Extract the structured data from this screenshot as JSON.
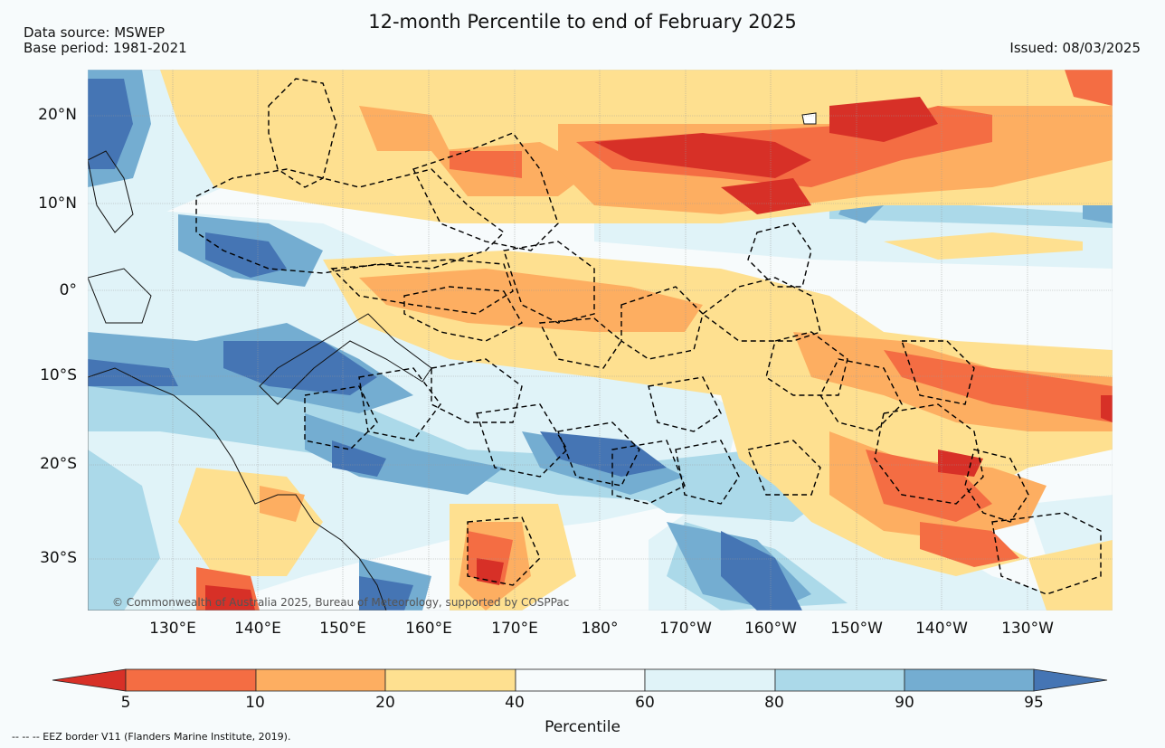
{
  "title": "12-month Percentile to end of February 2025",
  "source_line": "Data source: MSWEP",
  "base_period": "Base period: 1981-2021",
  "issued": "Issued: 08/03/2025",
  "copyright": "© Commonwealth of Australia 2025, Bureau of Meteorology, supported by COSPPac",
  "eez_note": "--  --  -- EEZ border V11 (Flanders Marine Institute, 2019).",
  "map": {
    "lon_min": 120,
    "lon_max": 240,
    "lat_min": -35,
    "lat_max": 25,
    "lat_labels": [
      "20°N",
      "10°N",
      "0°",
      "10°S",
      "20°S",
      "30°S"
    ],
    "lon_labels": [
      "130°E",
      "140°E",
      "150°E",
      "160°E",
      "170°E",
      "180°",
      "170°W",
      "160°W",
      "150°W",
      "140°W",
      "130°W"
    ]
  },
  "colorbar": {
    "label": "Percentile",
    "ticks": [
      "5",
      "10",
      "20",
      "40",
      "60",
      "80",
      "90",
      "95"
    ],
    "colors": {
      "lt5": "#d73027",
      "p5_10": "#f46d43",
      "p10_20": "#fdae61",
      "p20_40": "#fee090",
      "p40_60": "#f7fbfc",
      "p60_80": "#e0f3f8",
      "p80_90": "#abd9e9",
      "p90_95": "#74add1",
      "gt95": "#4575b4"
    }
  }
}
